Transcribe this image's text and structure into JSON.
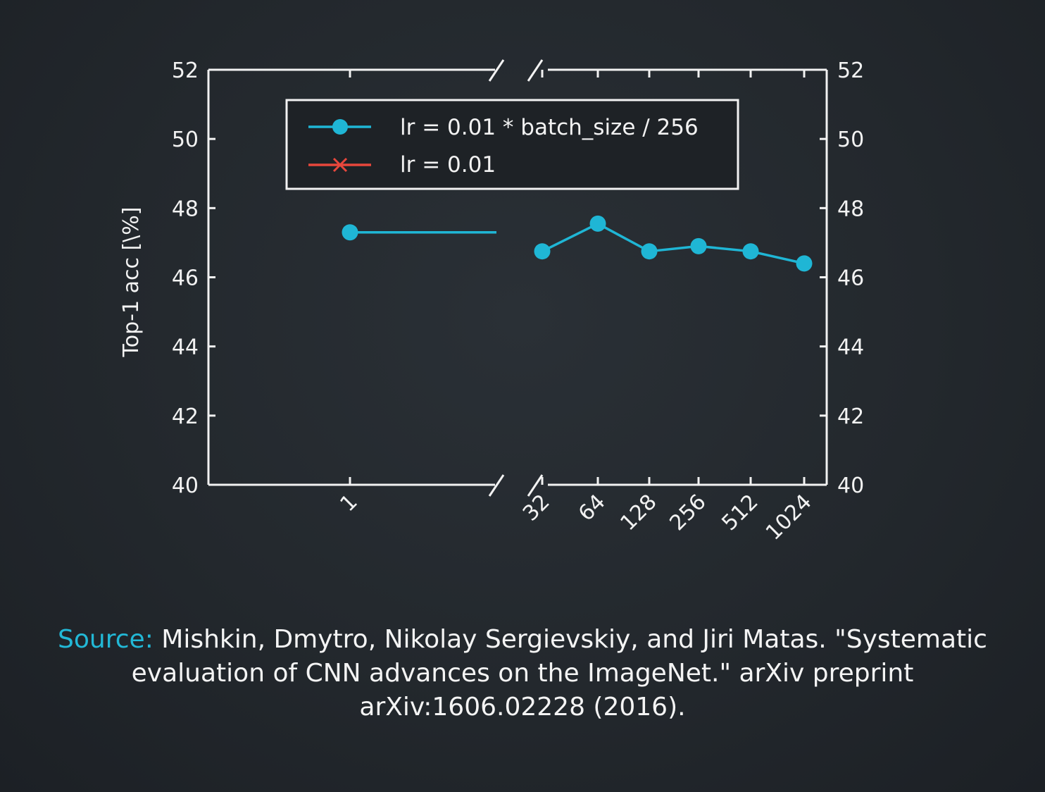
{
  "chart_data": {
    "type": "line",
    "ylabel": "Top-1 acc [\\%]",
    "ylim": [
      40,
      52
    ],
    "yticks": [
      40,
      42,
      44,
      46,
      48,
      50,
      52
    ],
    "x_categories": [
      "1",
      "32",
      "64",
      "128",
      "256",
      "512",
      "1024"
    ],
    "legend_position": "top",
    "series": [
      {
        "name": "lr = 0.01 * batch_size / 256",
        "color": "#1fb6d5",
        "marker": "circle",
        "x": [
          "1",
          "32",
          "64",
          "128",
          "256",
          "512",
          "1024"
        ],
        "values": [
          47.3,
          46.75,
          47.55,
          46.75,
          46.9,
          46.75,
          46.4
        ],
        "flat_to_axis_break_after_first": true
      },
      {
        "name": "lr = 0.01",
        "color": "#e8473c",
        "marker": "x",
        "x": [],
        "values": []
      }
    ]
  },
  "caption": {
    "label": "Source:",
    "text": " Mishkin, Dmytro, Nikolay Sergievskiy, and Jiri Matas. \"Systematic evaluation of CNN advances on the ImageNet.\" arXiv preprint arXiv:1606.02228 (2016)."
  }
}
